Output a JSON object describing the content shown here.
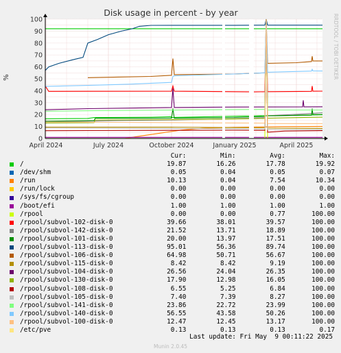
{
  "chart_data": {
    "type": "line",
    "title": "Disk usage in percent - by year",
    "ylabel": "%",
    "side_label": "RRDTOOL / TOBI OETIKER",
    "ylim": [
      0,
      100
    ],
    "yticks": [
      0,
      10,
      20,
      30,
      40,
      50,
      60,
      70,
      80,
      90,
      100
    ],
    "x_range": [
      "2024-03-31",
      "2025-05-09"
    ],
    "xticks": [
      {
        "date": "2024-04-01",
        "label": "April 2024"
      },
      {
        "date": "2024-07-01",
        "label": "July 2024"
      },
      {
        "date": "2024-10-01",
        "label": "October 2024"
      },
      {
        "date": "2025-01-01",
        "label": "January 2025"
      },
      {
        "date": "2025-04-01",
        "label": "April 2025"
      }
    ],
    "warning_line": 92,
    "grid": true,
    "gaps": [
      [
        "2024-12-14",
        "2024-12-18"
      ],
      [
        "2025-01-22",
        "2025-01-29"
      ]
    ],
    "columns": [
      "Cur:",
      "Min:",
      "Avg:",
      "Max:"
    ],
    "series": [
      {
        "name": "/",
        "color": "#00cc00",
        "cur": "19.87",
        "min": "16.26",
        "avg": "17.78",
        "max": "19.92",
        "points": [
          [
            "2024-03-31",
            16.5
          ],
          [
            "2024-06-01",
            16.8
          ],
          [
            "2024-06-10",
            17.5
          ],
          [
            "2024-09-01",
            17.8
          ],
          [
            "2024-09-30",
            18.2
          ],
          [
            "2024-10-01",
            17.6
          ],
          [
            "2024-12-31",
            18.6
          ],
          [
            "2025-02-15",
            19.0
          ],
          [
            "2025-03-28",
            19.3
          ],
          [
            "2025-04-10",
            19.6
          ],
          [
            "2025-05-09",
            19.87
          ]
        ]
      },
      {
        "name": "/dev/shm",
        "color": "#0066b3",
        "cur": "0.05",
        "min": "0.04",
        "avg": "0.05",
        "max": "0.07",
        "points": [
          [
            "2024-03-31",
            0.05
          ],
          [
            "2025-05-09",
            0.05
          ]
        ]
      },
      {
        "name": "/run",
        "color": "#ff8000",
        "cur": "10.13",
        "min": "0.04",
        "avg": "7.54",
        "max": "10.34",
        "points": [
          [
            "2024-07-25",
            0.04
          ],
          [
            "2024-08-10",
            1.5
          ],
          [
            "2024-09-15",
            4.5
          ],
          [
            "2024-10-15",
            7.0
          ],
          [
            "2024-11-15",
            8.5
          ],
          [
            "2024-12-31",
            9.3
          ],
          [
            "2025-02-10",
            9.6
          ],
          [
            "2025-03-10",
            9.9
          ],
          [
            "2025-05-09",
            10.13
          ]
        ]
      },
      {
        "name": "/run/lock",
        "color": "#ffcc00",
        "cur": "0.00",
        "min": "0.00",
        "avg": "0.00",
        "max": "0.00",
        "points": [
          [
            "2024-03-31",
            0
          ],
          [
            "2025-05-09",
            0
          ]
        ]
      },
      {
        "name": "/sys/fs/cgroup",
        "color": "#330099",
        "cur": "0.00",
        "min": "0.00",
        "avg": "0.00",
        "max": "0.00",
        "points": [
          [
            "2024-03-31",
            0
          ],
          [
            "2025-05-09",
            0
          ]
        ]
      },
      {
        "name": "/boot/efi",
        "color": "#990099",
        "cur": "1.00",
        "min": "1.00",
        "avg": "1.00",
        "max": "1.00",
        "points": [
          [
            "2024-03-31",
            1.0
          ],
          [
            "2025-05-09",
            1.0
          ]
        ]
      },
      {
        "name": "/rpool",
        "color": "#ccff00",
        "cur": "0.00",
        "min": "0.00",
        "avg": "0.77",
        "max": "100.00",
        "points": [
          [
            "2025-02-14",
            0
          ],
          [
            "2025-02-16",
            100
          ],
          [
            "2025-02-18",
            0
          ],
          [
            "2025-05-09",
            0
          ]
        ]
      },
      {
        "name": "/rpool/subvol-102-disk-0",
        "color": "#ff0000",
        "cur": "39.66",
        "min": "38.01",
        "avg": "39.57",
        "max": "100.00",
        "points": [
          [
            "2024-03-31",
            44.0
          ],
          [
            "2024-04-05",
            39.5
          ],
          [
            "2024-10-01",
            39.6
          ],
          [
            "2024-10-03",
            44.0
          ],
          [
            "2024-10-05",
            39.6
          ],
          [
            "2025-01-29",
            39.0
          ],
          [
            "2025-02-14",
            39.2
          ],
          [
            "2025-02-16",
            100
          ],
          [
            "2025-02-18",
            39.2
          ],
          [
            "2025-04-23",
            39.5
          ],
          [
            "2025-04-24",
            44.0
          ],
          [
            "2025-04-25",
            39.6
          ],
          [
            "2025-05-09",
            39.66
          ]
        ]
      },
      {
        "name": "/rpool/subvol-142-disk-0",
        "color": "#808080",
        "cur": "21.52",
        "min": "13.71",
        "avg": "18.89",
        "max": "100.00",
        "points": [
          [
            "2024-03-31",
            14.0
          ],
          [
            "2024-06-01",
            14.5
          ],
          [
            "2024-07-10",
            15.0
          ],
          [
            "2024-10-01",
            15.5
          ],
          [
            "2024-12-31",
            16.5
          ],
          [
            "2025-02-14",
            17.5
          ],
          [
            "2025-02-16",
            100
          ],
          [
            "2025-02-18",
            19.0
          ],
          [
            "2025-04-10",
            20.5
          ],
          [
            "2025-05-09",
            21.52
          ]
        ]
      },
      {
        "name": "/rpool/subvol-101-disk-0",
        "color": "#008f00",
        "cur": "20.00",
        "min": "13.97",
        "avg": "17.51",
        "max": "100.00",
        "points": [
          [
            "2024-03-31",
            14.5
          ],
          [
            "2024-06-10",
            15.0
          ],
          [
            "2024-06-12",
            17.0
          ],
          [
            "2024-10-01",
            17.0
          ],
          [
            "2024-10-03",
            25.0
          ],
          [
            "2024-10-05",
            17.0
          ],
          [
            "2024-12-31",
            17.5
          ],
          [
            "2025-02-14",
            18.5
          ],
          [
            "2025-02-16",
            100
          ],
          [
            "2025-02-18",
            19.0
          ],
          [
            "2025-04-23",
            19.5
          ],
          [
            "2025-04-24",
            25.0
          ],
          [
            "2025-04-25",
            20.0
          ],
          [
            "2025-05-09",
            20.0
          ]
        ]
      },
      {
        "name": "/rpool/subvol-113-disk-0",
        "color": "#00487d",
        "cur": "95.01",
        "min": "56.36",
        "avg": "89.74",
        "max": "100.00",
        "points": [
          [
            "2024-03-31",
            57.0
          ],
          [
            "2024-04-05",
            60.0
          ],
          [
            "2024-04-20",
            63.0
          ],
          [
            "2024-05-10",
            66.0
          ],
          [
            "2024-05-25",
            68.0
          ],
          [
            "2024-06-01",
            80.0
          ],
          [
            "2024-06-15",
            83.0
          ],
          [
            "2024-07-01",
            87.0
          ],
          [
            "2024-07-20",
            90.0
          ],
          [
            "2024-08-05",
            92.0
          ],
          [
            "2024-08-15",
            94.0
          ],
          [
            "2024-09-01",
            94.8
          ],
          [
            "2024-12-31",
            94.9
          ],
          [
            "2025-02-14",
            95.0
          ],
          [
            "2025-02-16",
            100
          ],
          [
            "2025-02-18",
            95.0
          ],
          [
            "2025-05-09",
            95.01
          ]
        ]
      },
      {
        "name": "/rpool/subvol-106-disk-0",
        "color": "#b35a00",
        "cur": "64.98",
        "min": "50.71",
        "avg": "56.67",
        "max": "100.00",
        "points": [
          [
            "2024-06-01",
            51.0
          ],
          [
            "2024-07-15",
            51.5
          ],
          [
            "2024-09-01",
            52.0
          ],
          [
            "2024-10-01",
            53.0
          ],
          [
            "2024-10-03",
            67.0
          ],
          [
            "2024-10-05",
            53.5
          ],
          [
            "2024-12-31",
            54.0
          ],
          [
            "2025-02-14",
            55.0
          ],
          [
            "2025-02-16",
            100
          ],
          [
            "2025-02-18",
            63.0
          ],
          [
            "2025-04-01",
            63.5
          ],
          [
            "2025-04-23",
            64.5
          ],
          [
            "2025-04-24",
            69.0
          ],
          [
            "2025-04-25",
            65.0
          ],
          [
            "2025-05-09",
            64.98
          ]
        ]
      },
      {
        "name": "/rpool/subvol-115-disk-0",
        "color": "#b38f00",
        "cur": "8.42",
        "min": "8.42",
        "avg": "9.19",
        "max": "100.00",
        "points": [
          [
            "2024-03-31",
            9.5
          ],
          [
            "2024-10-01",
            9.4
          ],
          [
            "2024-12-31",
            9.1
          ],
          [
            "2025-02-14",
            9.0
          ],
          [
            "2025-02-16",
            100
          ],
          [
            "2025-02-18",
            8.6
          ],
          [
            "2025-05-09",
            8.42
          ]
        ]
      },
      {
        "name": "/rpool/subvol-104-disk-0",
        "color": "#6b006b",
        "cur": "26.56",
        "min": "24.04",
        "avg": "26.35",
        "max": "100.00",
        "points": [
          [
            "2024-03-31",
            24.0
          ],
          [
            "2024-06-01",
            25.0
          ],
          [
            "2024-10-01",
            26.0
          ],
          [
            "2024-10-03",
            42.0
          ],
          [
            "2024-10-05",
            26.0
          ],
          [
            "2024-12-31",
            26.3
          ],
          [
            "2025-02-14",
            26.4
          ],
          [
            "2025-02-16",
            100
          ],
          [
            "2025-02-18",
            26.4
          ],
          [
            "2025-04-10",
            26.5
          ],
          [
            "2025-04-11",
            32.0
          ],
          [
            "2025-04-12",
            26.5
          ],
          [
            "2025-05-09",
            26.56
          ]
        ]
      },
      {
        "name": "/rpool/subvol-130-disk-0",
        "color": "#8fb300",
        "cur": "17.90",
        "min": "12.98",
        "avg": "16.05",
        "max": "100.00",
        "points": [
          [
            "2024-03-31",
            13.0
          ],
          [
            "2024-06-10",
            13.2
          ],
          [
            "2024-06-12",
            15.5
          ],
          [
            "2024-10-01",
            15.8
          ],
          [
            "2024-12-31",
            16.3
          ],
          [
            "2025-02-14",
            16.8
          ],
          [
            "2025-02-16",
            100
          ],
          [
            "2025-02-18",
            17.0
          ],
          [
            "2025-05-09",
            17.9
          ]
        ]
      },
      {
        "name": "/rpool/subvol-108-disk-0",
        "color": "#b30000",
        "cur": "6.55",
        "min": "5.25",
        "avg": "6.84",
        "max": "100.00",
        "points": [
          [
            "2024-03-31",
            6.5
          ],
          [
            "2024-06-01",
            6.6
          ],
          [
            "2024-10-01",
            6.8
          ],
          [
            "2024-12-31",
            6.9
          ],
          [
            "2025-02-14",
            6.8
          ],
          [
            "2025-02-16",
            100
          ],
          [
            "2025-02-18",
            5.3
          ],
          [
            "2025-03-15",
            6.2
          ],
          [
            "2025-05-09",
            6.55
          ]
        ]
      },
      {
        "name": "/rpool/subvol-105-disk-0",
        "color": "#bebebe",
        "cur": "7.40",
        "min": "7.39",
        "avg": "8.27",
        "max": "100.00",
        "points": [
          [
            "2024-03-31",
            8.8
          ],
          [
            "2024-10-01",
            8.4
          ],
          [
            "2024-12-31",
            8.1
          ],
          [
            "2025-02-14",
            7.8
          ],
          [
            "2025-02-16",
            100
          ],
          [
            "2025-02-18",
            7.5
          ],
          [
            "2025-05-09",
            7.4
          ]
        ]
      },
      {
        "name": "/rpool/subvol-141-disk-0",
        "color": "#80ff80",
        "cur": "23.86",
        "min": "22.72",
        "avg": "23.99",
        "max": "100.00",
        "points": [
          [
            "2024-03-31",
            22.8
          ],
          [
            "2024-06-01",
            23.2
          ],
          [
            "2024-10-01",
            23.8
          ],
          [
            "2024-12-31",
            24.2
          ],
          [
            "2025-02-14",
            24.3
          ],
          [
            "2025-02-16",
            100
          ],
          [
            "2025-02-18",
            23.9
          ],
          [
            "2025-05-09",
            23.86
          ]
        ]
      },
      {
        "name": "/rpool/subvol-140-disk-0",
        "color": "#80c9ff",
        "cur": "56.55",
        "min": "43.58",
        "avg": "50.26",
        "max": "100.00",
        "points": [
          [
            "2024-03-31",
            43.6
          ],
          [
            "2024-06-01",
            44.5
          ],
          [
            "2024-08-01",
            45.5
          ],
          [
            "2024-10-01",
            47.0
          ],
          [
            "2024-10-03",
            52.0
          ],
          [
            "2024-10-05",
            52.5
          ],
          [
            "2024-12-31",
            54.0
          ],
          [
            "2025-02-14",
            55.0
          ],
          [
            "2025-02-16",
            100
          ],
          [
            "2025-02-18",
            55.5
          ],
          [
            "2025-04-23",
            56.5
          ],
          [
            "2025-04-24",
            58.0
          ],
          [
            "2025-04-25",
            56.6
          ],
          [
            "2025-05-09",
            56.55
          ]
        ]
      },
      {
        "name": "/rpool/subvol-100-disk-0",
        "color": "#ffc080",
        "cur": "12.47",
        "min": "12.45",
        "avg": "13.17",
        "max": "100.00",
        "points": [
          [
            "2024-03-31",
            13.8
          ],
          [
            "2024-07-01",
            13.5
          ],
          [
            "2024-10-01",
            13.3
          ],
          [
            "2024-12-31",
            13.0
          ],
          [
            "2025-02-14",
            12.9
          ],
          [
            "2025-02-16",
            100
          ],
          [
            "2025-02-18",
            12.5
          ],
          [
            "2025-05-09",
            12.47
          ]
        ]
      },
      {
        "name": "/etc/pve",
        "color": "#ffe680",
        "cur": "0.13",
        "min": "0.13",
        "avg": "0.13",
        "max": "0.17",
        "points": [
          [
            "2024-03-31",
            0.13
          ],
          [
            "2025-05-09",
            0.13
          ]
        ]
      }
    ]
  },
  "footer": {
    "last_update": "Last update: Fri May  9 00:11:22 2025",
    "version": "Munin 2.0.45"
  }
}
